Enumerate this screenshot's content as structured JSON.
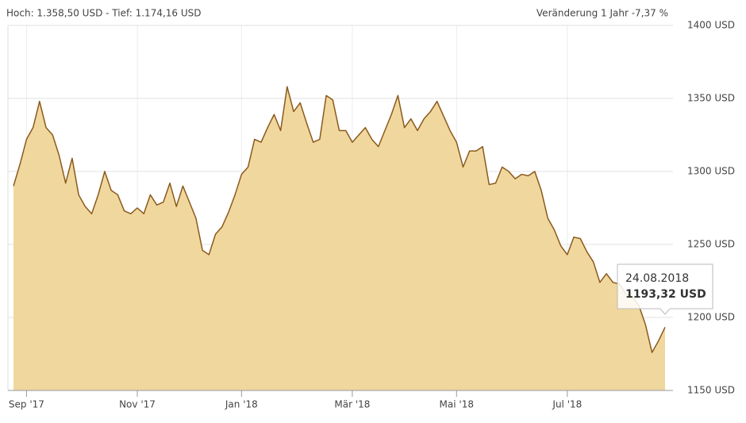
{
  "chart_data": {
    "type": "area",
    "header_left": "Hoch: 1.358,50 USD - Tief: 1.174,16 USD",
    "header_right": "Veränderung 1 Jahr -7,37 %",
    "categories": [
      null,
      null,
      "Sep '17",
      null,
      null,
      null,
      null,
      null,
      null,
      null,
      null,
      null,
      null,
      null,
      null,
      null,
      null,
      null,
      null,
      "Nov '17",
      null,
      null,
      null,
      null,
      null,
      null,
      null,
      null,
      null,
      null,
      null,
      null,
      null,
      null,
      null,
      "Jan '18",
      null,
      null,
      null,
      null,
      null,
      null,
      null,
      null,
      null,
      null,
      null,
      null,
      null,
      null,
      null,
      null,
      "Mär '18",
      null,
      null,
      null,
      null,
      null,
      null,
      null,
      null,
      null,
      null,
      null,
      null,
      null,
      null,
      null,
      "Mai '18",
      null,
      null,
      null,
      null,
      null,
      null,
      null,
      null,
      null,
      null,
      null,
      null,
      null,
      null,
      null,
      null,
      "Jul '18",
      null,
      null,
      null,
      null,
      null,
      null,
      null,
      null,
      null,
      null,
      null,
      null,
      null,
      null,
      null
    ],
    "series": [
      {
        "color": "#f0d79e",
        "line_color": "#8a5a1c",
        "values": [
          1290,
          1305,
          1322,
          1330,
          1348,
          1330,
          1325,
          1311,
          1292,
          1309,
          1284,
          1276,
          1271,
          1284,
          1300,
          1287,
          1284,
          1273,
          1271,
          1275,
          1271,
          1284,
          1277,
          1279,
          1292,
          1276,
          1290,
          1279,
          1268,
          1246,
          1243,
          1257,
          1262,
          1272,
          1284,
          1298,
          1303,
          1322,
          1320,
          1330,
          1339,
          1328,
          1358,
          1341,
          1347,
          1333,
          1320,
          1322,
          1352,
          1349,
          1328,
          1328,
          1320,
          1325,
          1330,
          1322,
          1317,
          1328,
          1339,
          1352,
          1330,
          1336,
          1328,
          1336,
          1341,
          1348,
          1338,
          1328,
          1320,
          1303,
          1314,
          1314,
          1317,
          1291,
          1292,
          1303,
          1300,
          1295,
          1298,
          1297,
          1300,
          1287,
          1268,
          1260,
          1249,
          1243,
          1255,
          1254,
          1245,
          1238,
          1224,
          1230,
          1224,
          1223,
          1216,
          1214,
          1208,
          1195,
          1176,
          1184,
          1193.32
        ]
      }
    ],
    "ylim": [
      1150,
      1400
    ],
    "yticks": [
      {
        "value": 1150,
        "label": "1150 USD"
      },
      {
        "value": 1200,
        "label": "1200 USD"
      },
      {
        "value": 1250,
        "label": "1250 USD"
      },
      {
        "value": 1300,
        "label": "1300 USD"
      },
      {
        "value": 1350,
        "label": "1350 USD"
      },
      {
        "value": 1400,
        "label": "1400 USD"
      }
    ],
    "grid": true,
    "tooltip": {
      "date": "24.08.2018",
      "label": "1193,32 USD"
    }
  }
}
